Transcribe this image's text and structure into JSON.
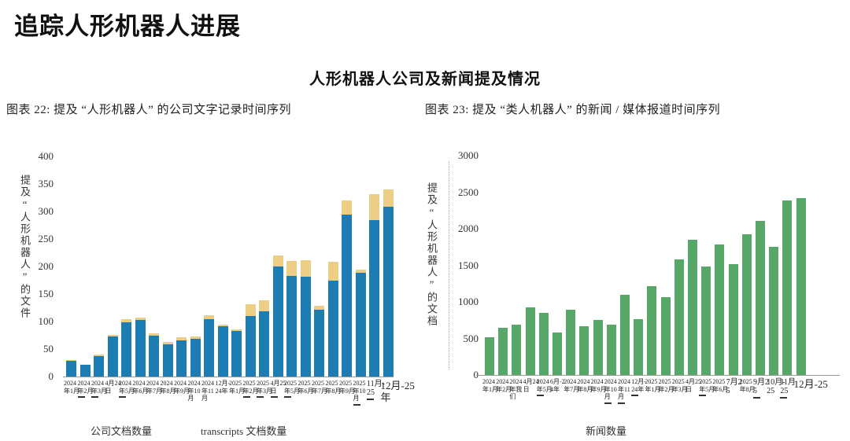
{
  "page": {
    "title": "追踪人形机器人进展",
    "subtitle": "人形机器人公司及新闻提及情况"
  },
  "chart_data": [
    {
      "type": "bar",
      "subtype": "stacked",
      "caption": "图表 22: 提及 “人形机器人” 的公司文字记录时间序列",
      "ylabel": "提及“人形机器人”的文件",
      "xlabel": "",
      "ylim": [
        0,
        400
      ],
      "yticks": [
        0,
        50,
        100,
        150,
        200,
        250,
        300,
        350,
        400
      ],
      "grid": false,
      "legend_position": "bottom",
      "categories": [
        "2024年1月",
        "2024年2月",
        "2024年3月",
        "4月24日",
        "2024年5月",
        "2024年6月",
        "2024年7月",
        "2024年8月",
        "2024年9月",
        "2024年10月",
        "2024年11月",
        "12月-24年",
        "2025年1月",
        "2025年2月",
        "2025年3月",
        "4月25日",
        "2025年5月",
        "2025年6月",
        "2025年7月",
        "2025年8月",
        "2025年9月",
        "2025年10月",
        "11月-25",
        "12月-25年"
      ],
      "label_sizes": [
        "s",
        "s",
        "s",
        "s",
        "s",
        "s",
        "s",
        "s",
        "s",
        "s",
        "s",
        "s",
        "s",
        "s",
        "s",
        "s",
        "s",
        "s",
        "s",
        "s",
        "s",
        "s",
        "m",
        "l"
      ],
      "underline_marks": [
        1,
        2,
        4,
        13,
        14,
        15,
        16,
        21,
        22
      ],
      "series": [
        {
          "name": "公司文档数量",
          "color": "#1d7db3",
          "values": [
            28,
            22,
            37,
            73,
            98,
            103,
            75,
            59,
            66,
            69,
            104,
            91,
            83,
            110,
            119,
            200,
            183,
            181,
            122,
            174,
            294,
            188,
            285,
            309
          ]
        },
        {
          "name": "transcripts 文档数量",
          "color": "#ecce85",
          "values": [
            2,
            0,
            3,
            3,
            6,
            4,
            4,
            4,
            6,
            4,
            8,
            4,
            3,
            22,
            20,
            20,
            27,
            30,
            7,
            35,
            26,
            7,
            46,
            31
          ]
        }
      ]
    },
    {
      "type": "bar",
      "subtype": "simple",
      "caption": "图表 23: 提及 “类人机器人” 的新闻 / 媒体报道时间序列",
      "ylabel": "提及“人形机器人”的文档",
      "xlabel": "",
      "ylim": [
        0,
        3000
      ],
      "yticks": [
        0,
        500,
        1000,
        1500,
        2000,
        2500,
        3000
      ],
      "grid": false,
      "legend_position": "bottom",
      "categories": [
        "2024年1月",
        "2024年2月",
        "2024年我们",
        "4月24日",
        "2024年5月",
        "6月-24年",
        "2024年7月",
        "2024年8月",
        "2024年9月",
        "2024年10月",
        "2024年11月",
        "12月-24年",
        "2025年1月",
        "2025年2月",
        "2025年3月",
        "4月25日",
        "2025年5月",
        "2025年6月",
        "7月25",
        "2025年8月",
        "9月25",
        "10月-25",
        "11月25",
        "12月-25"
      ],
      "label_sizes": [
        "s",
        "s",
        "s",
        "s",
        "s",
        "s",
        "s",
        "s",
        "s",
        "s",
        "s",
        "s",
        "s",
        "s",
        "s",
        "s",
        "s",
        "s",
        "m",
        "s",
        "m",
        "m",
        "m",
        "l"
      ],
      "underline_marks": [
        4,
        9,
        10,
        11,
        16,
        20,
        22
      ],
      "series": [
        {
          "name": "新闻数量",
          "color": "#57a768",
          "values": [
            520,
            640,
            690,
            920,
            850,
            580,
            890,
            670,
            750,
            690,
            1100,
            760,
            1220,
            1070,
            1580,
            1850,
            1480,
            1790,
            1520,
            1920,
            2110,
            1750,
            2390,
            2420
          ]
        }
      ]
    }
  ]
}
